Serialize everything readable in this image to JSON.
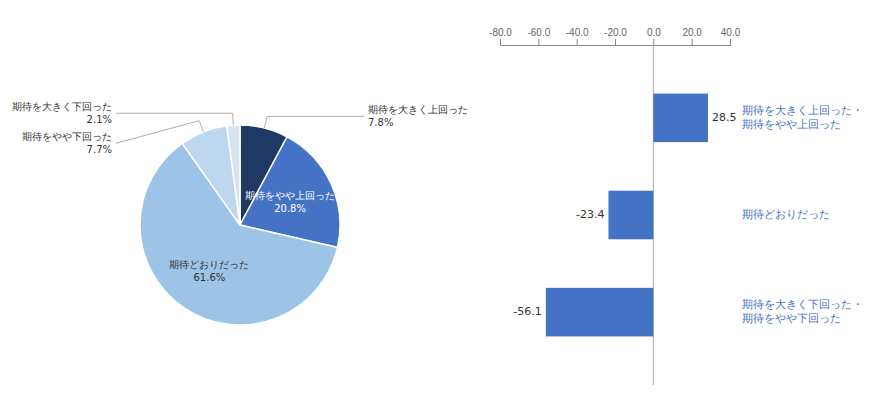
{
  "chart_data": [
    {
      "type": "pie",
      "categories": [
        "期待を大きく上回った",
        "期待をやや上回った",
        "期待どおりだった",
        "期待をやや下回った",
        "期待を大きく下回った"
      ],
      "values": [
        7.8,
        20.8,
        61.6,
        7.7,
        2.1
      ],
      "value_labels": [
        "7.8%",
        "20.8%",
        "61.6%",
        "7.7%",
        "2.1%"
      ],
      "colors": [
        "#1F3864",
        "#4472C4",
        "#9DC3E6",
        "#BDD7EE",
        "#D6E4F0"
      ],
      "data_labels": true
    },
    {
      "type": "bar",
      "orientation": "horizontal",
      "categories": [
        "期待を大きく上回った・期待をやや上回った",
        "期待どおりだった",
        "期待を大きく下回った・期待をやや下回った"
      ],
      "values": [
        28.5,
        -23.4,
        -56.1
      ],
      "color": "#4472C4",
      "xlim": [
        -80,
        40
      ],
      "xticks": [
        {
          "value": -80,
          "label": "-80.0"
        },
        {
          "value": -60,
          "label": "-60.0"
        },
        {
          "value": -40,
          "label": "-40.0"
        },
        {
          "value": -20,
          "label": "-20.0"
        },
        {
          "value": 0,
          "label": "0.0"
        },
        {
          "value": 20,
          "label": "20.0"
        },
        {
          "value": 40,
          "label": "40.0"
        }
      ],
      "data_labels": true,
      "grid": false
    }
  ]
}
